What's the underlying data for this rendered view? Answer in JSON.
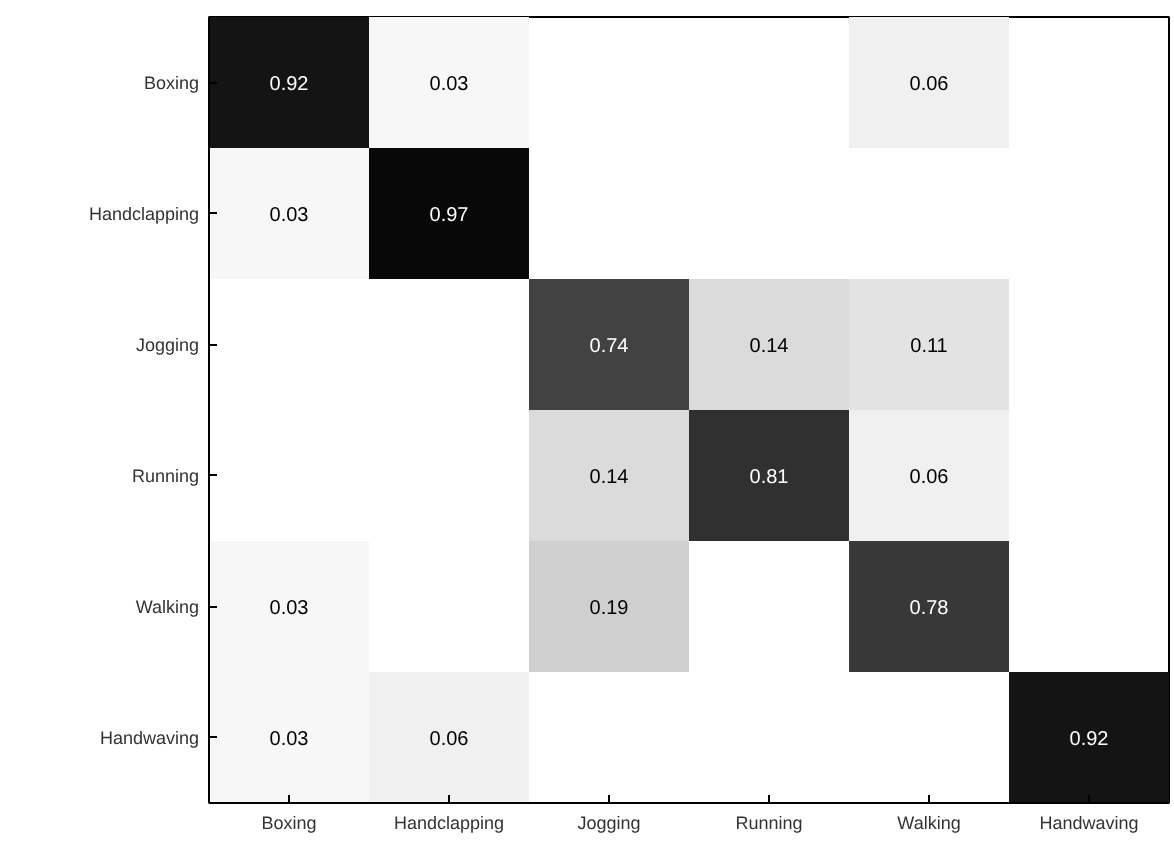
{
  "chart_data": {
    "type": "heatmap",
    "categories": [
      "Boxing",
      "Handclapping",
      "Jogging",
      "Running",
      "Walking",
      "Handwaving"
    ],
    "y_categories": [
      "Boxing",
      "Handclapping",
      "Jogging",
      "Running",
      "Walking",
      "Handwaving"
    ],
    "cells": [
      [
        0.92,
        0.03,
        null,
        null,
        0.06,
        null
      ],
      [
        0.03,
        0.97,
        null,
        null,
        null,
        null
      ],
      [
        null,
        null,
        0.74,
        0.14,
        0.11,
        null
      ],
      [
        null,
        null,
        0.14,
        0.81,
        0.06,
        null
      ],
      [
        0.03,
        null,
        0.19,
        null,
        0.78,
        null
      ],
      [
        0.03,
        0.06,
        null,
        null,
        null,
        0.92
      ]
    ],
    "data_labels": true
  }
}
